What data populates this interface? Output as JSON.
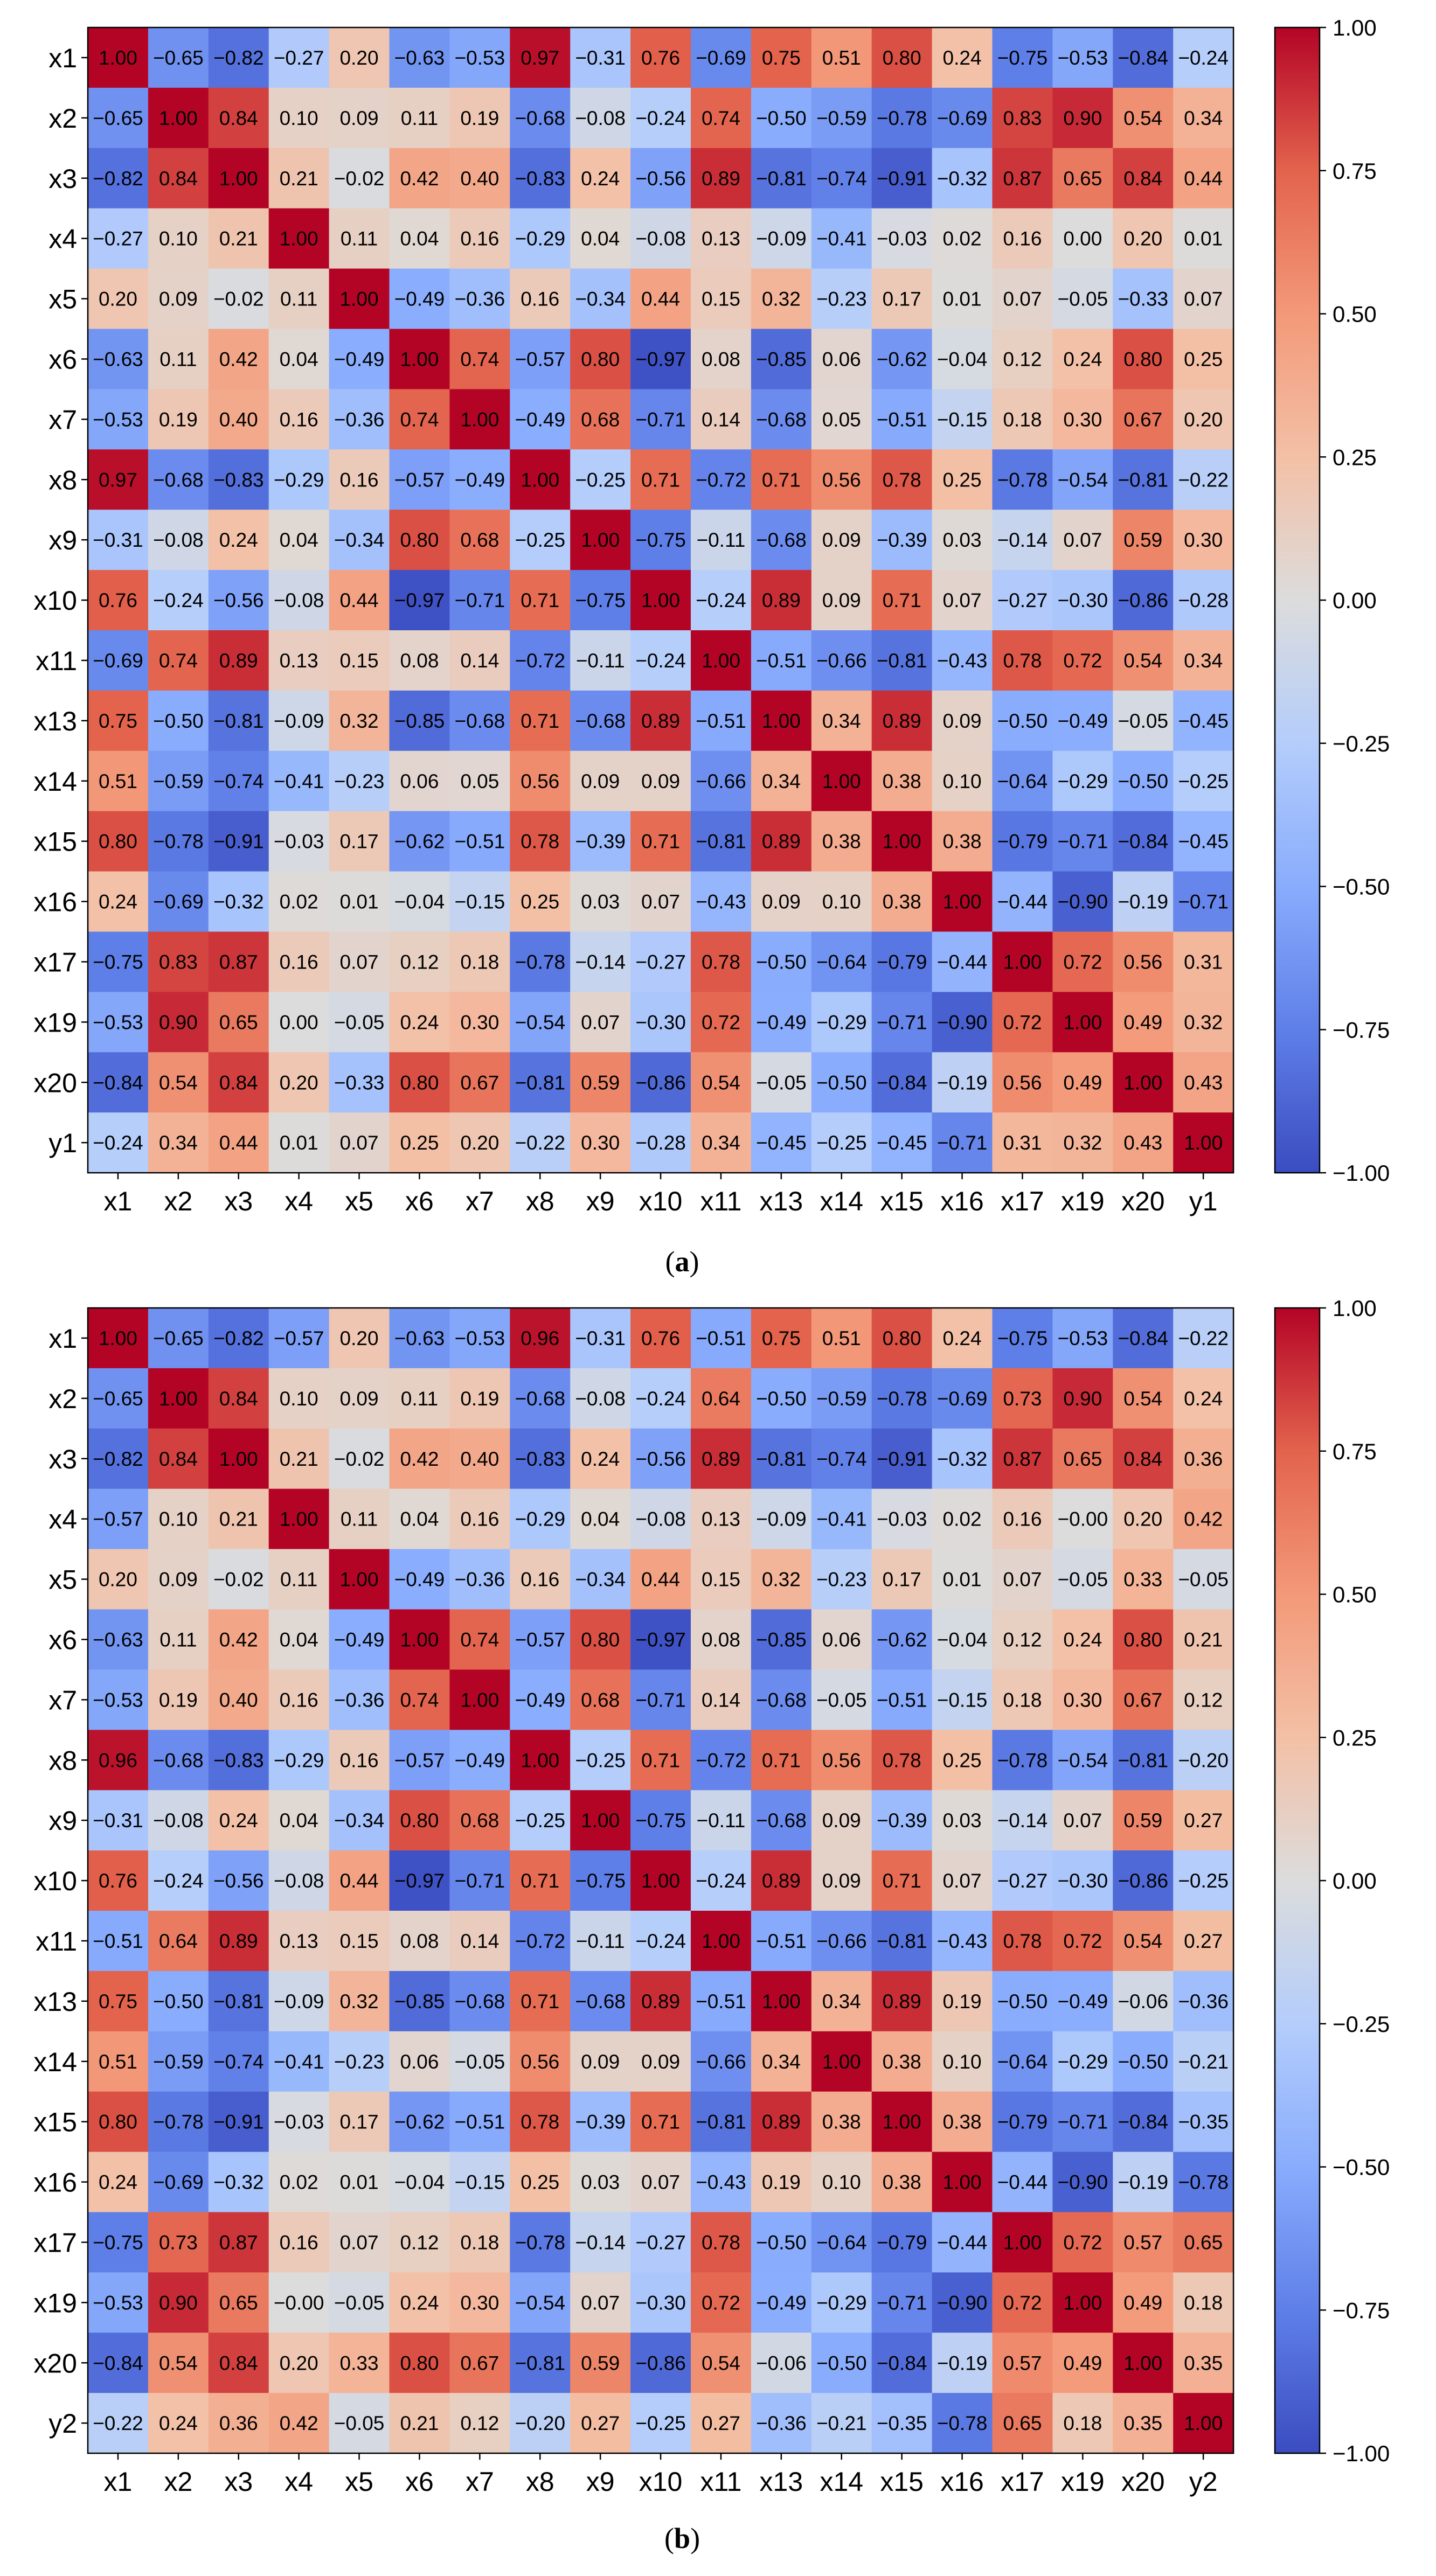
{
  "chart_data": [
    {
      "type": "heatmap",
      "caption": "(a)",
      "caption_letter": "a",
      "labels": [
        "x1",
        "x2",
        "x3",
        "x4",
        "x5",
        "x6",
        "x7",
        "x8",
        "x9",
        "x10",
        "x11",
        "x13",
        "x14",
        "x15",
        "x16",
        "x17",
        "x19",
        "x20",
        "y1"
      ],
      "values": [
        [
          "1.00",
          "-0.65",
          "-0.82",
          "-0.27",
          "0.20",
          "-0.63",
          "-0.53",
          "0.97",
          "-0.31",
          "0.76",
          "-0.69",
          "0.75",
          "0.51",
          "0.80",
          "0.24",
          "-0.75",
          "-0.53",
          "-0.84",
          "-0.24"
        ],
        [
          "-0.65",
          "1.00",
          "0.84",
          "0.10",
          "0.09",
          "0.11",
          "0.19",
          "-0.68",
          "-0.08",
          "-0.24",
          "0.74",
          "-0.50",
          "-0.59",
          "-0.78",
          "-0.69",
          "0.83",
          "0.90",
          "0.54",
          "0.34"
        ],
        [
          "-0.82",
          "0.84",
          "1.00",
          "0.21",
          "-0.02",
          "0.42",
          "0.40",
          "-0.83",
          "0.24",
          "-0.56",
          "0.89",
          "-0.81",
          "-0.74",
          "-0.91",
          "-0.32",
          "0.87",
          "0.65",
          "0.84",
          "0.44"
        ],
        [
          "-0.27",
          "0.10",
          "0.21",
          "1.00",
          "0.11",
          "0.04",
          "0.16",
          "-0.29",
          "0.04",
          "-0.08",
          "0.13",
          "-0.09",
          "-0.41",
          "-0.03",
          "0.02",
          "0.16",
          "0.00",
          "0.20",
          "0.01"
        ],
        [
          "0.20",
          "0.09",
          "-0.02",
          "0.11",
          "1.00",
          "-0.49",
          "-0.36",
          "0.16",
          "-0.34",
          "0.44",
          "0.15",
          "0.32",
          "-0.23",
          "0.17",
          "0.01",
          "0.07",
          "-0.05",
          "-0.33",
          "0.07"
        ],
        [
          "-0.63",
          "0.11",
          "0.42",
          "0.04",
          "-0.49",
          "1.00",
          "0.74",
          "-0.57",
          "0.80",
          "-0.97",
          "0.08",
          "-0.85",
          "0.06",
          "-0.62",
          "-0.04",
          "0.12",
          "0.24",
          "0.80",
          "0.25"
        ],
        [
          "-0.53",
          "0.19",
          "0.40",
          "0.16",
          "-0.36",
          "0.74",
          "1.00",
          "-0.49",
          "0.68",
          "-0.71",
          "0.14",
          "-0.68",
          "0.05",
          "-0.51",
          "-0.15",
          "0.18",
          "0.30",
          "0.67",
          "0.20"
        ],
        [
          "0.97",
          "-0.68",
          "-0.83",
          "-0.29",
          "0.16",
          "-0.57",
          "-0.49",
          "1.00",
          "-0.25",
          "0.71",
          "-0.72",
          "0.71",
          "0.56",
          "0.78",
          "0.25",
          "-0.78",
          "-0.54",
          "-0.81",
          "-0.22"
        ],
        [
          "-0.31",
          "-0.08",
          "0.24",
          "0.04",
          "-0.34",
          "0.80",
          "0.68",
          "-0.25",
          "1.00",
          "-0.75",
          "-0.11",
          "-0.68",
          "0.09",
          "-0.39",
          "0.03",
          "-0.14",
          "0.07",
          "0.59",
          "0.30"
        ],
        [
          "0.76",
          "-0.24",
          "-0.56",
          "-0.08",
          "0.44",
          "-0.97",
          "-0.71",
          "0.71",
          "-0.75",
          "1.00",
          "-0.24",
          "0.89",
          "0.09",
          "0.71",
          "0.07",
          "-0.27",
          "-0.30",
          "-0.86",
          "-0.28"
        ],
        [
          "-0.69",
          "0.74",
          "0.89",
          "0.13",
          "0.15",
          "0.08",
          "0.14",
          "-0.72",
          "-0.11",
          "-0.24",
          "1.00",
          "-0.51",
          "-0.66",
          "-0.81",
          "-0.43",
          "0.78",
          "0.72",
          "0.54",
          "0.34"
        ],
        [
          "0.75",
          "-0.50",
          "-0.81",
          "-0.09",
          "0.32",
          "-0.85",
          "-0.68",
          "0.71",
          "-0.68",
          "0.89",
          "-0.51",
          "1.00",
          "0.34",
          "0.89",
          "0.09",
          "-0.50",
          "-0.49",
          "-0.05",
          "-0.45"
        ],
        [
          "0.51",
          "-0.59",
          "-0.74",
          "-0.41",
          "-0.23",
          "0.06",
          "0.05",
          "0.56",
          "0.09",
          "0.09",
          "-0.66",
          "0.34",
          "1.00",
          "0.38",
          "0.10",
          "-0.64",
          "-0.29",
          "-0.50",
          "-0.25"
        ],
        [
          "0.80",
          "-0.78",
          "-0.91",
          "-0.03",
          "0.17",
          "-0.62",
          "-0.51",
          "0.78",
          "-0.39",
          "0.71",
          "-0.81",
          "0.89",
          "0.38",
          "1.00",
          "0.38",
          "-0.79",
          "-0.71",
          "-0.84",
          "-0.45"
        ],
        [
          "0.24",
          "-0.69",
          "-0.32",
          "0.02",
          "0.01",
          "-0.04",
          "-0.15",
          "0.25",
          "0.03",
          "0.07",
          "-0.43",
          "0.09",
          "0.10",
          "0.38",
          "1.00",
          "-0.44",
          "-0.90",
          "-0.19",
          "-0.71"
        ],
        [
          "-0.75",
          "0.83",
          "0.87",
          "0.16",
          "0.07",
          "0.12",
          "0.18",
          "-0.78",
          "-0.14",
          "-0.27",
          "0.78",
          "-0.50",
          "-0.64",
          "-0.79",
          "-0.44",
          "1.00",
          "0.72",
          "0.56",
          "0.31"
        ],
        [
          "-0.53",
          "0.90",
          "0.65",
          "0.00",
          "-0.05",
          "0.24",
          "0.30",
          "-0.54",
          "0.07",
          "-0.30",
          "0.72",
          "-0.49",
          "-0.29",
          "-0.71",
          "-0.90",
          "0.72",
          "1.00",
          "0.49",
          "0.32"
        ],
        [
          "-0.84",
          "0.54",
          "0.84",
          "0.20",
          "-0.33",
          "0.80",
          "0.67",
          "-0.81",
          "0.59",
          "-0.86",
          "0.54",
          "-0.05",
          "-0.50",
          "-0.84",
          "-0.19",
          "0.56",
          "0.49",
          "1.00",
          "0.43"
        ],
        [
          "-0.24",
          "0.34",
          "0.44",
          "0.01",
          "0.07",
          "0.25",
          "0.20",
          "-0.22",
          "0.30",
          "-0.28",
          "0.34",
          "-0.45",
          "-0.25",
          "-0.45",
          "-0.71",
          "0.31",
          "0.32",
          "0.43",
          "1.00"
        ]
      ],
      "colorbar": {
        "range": [
          -1.0,
          1.0
        ],
        "ticks": [
          "1.00",
          "0.75",
          "0.50",
          "0.25",
          "0.00",
          "−0.25",
          "−0.50",
          "−0.75",
          "−1.00"
        ],
        "tick_values": [
          1.0,
          0.75,
          0.5,
          0.25,
          0.0,
          -0.25,
          -0.5,
          -0.75,
          -1.0
        ],
        "colormap": "coolwarm"
      }
    },
    {
      "type": "heatmap",
      "caption": "(b)",
      "caption_letter": "b",
      "labels": [
        "x1",
        "x2",
        "x3",
        "x4",
        "x5",
        "x6",
        "x7",
        "x8",
        "x9",
        "x10",
        "x11",
        "x13",
        "x14",
        "x15",
        "x16",
        "x17",
        "x19",
        "x20",
        "y2"
      ],
      "values": [
        [
          "1.00",
          "-0.65",
          "-0.82",
          "-0.57",
          "0.20",
          "-0.63",
          "-0.53",
          "0.96",
          "-0.31",
          "0.76",
          "-0.51",
          "0.75",
          "0.51",
          "0.80",
          "0.24",
          "-0.75",
          "-0.53",
          "-0.84",
          "-0.22"
        ],
        [
          "-0.65",
          "1.00",
          "0.84",
          "0.10",
          "0.09",
          "0.11",
          "0.19",
          "-0.68",
          "-0.08",
          "-0.24",
          "0.64",
          "-0.50",
          "-0.59",
          "-0.78",
          "-0.69",
          "0.73",
          "0.90",
          "0.54",
          "0.24"
        ],
        [
          "-0.82",
          "0.84",
          "1.00",
          "0.21",
          "-0.02",
          "0.42",
          "0.40",
          "-0.83",
          "0.24",
          "-0.56",
          "0.89",
          "-0.81",
          "-0.74",
          "-0.91",
          "-0.32",
          "0.87",
          "0.65",
          "0.84",
          "0.36"
        ],
        [
          "-0.57",
          "0.10",
          "0.21",
          "1.00",
          "0.11",
          "0.04",
          "0.16",
          "-0.29",
          "0.04",
          "-0.08",
          "0.13",
          "-0.09",
          "-0.41",
          "-0.03",
          "0.02",
          "0.16",
          "-0.00",
          "0.20",
          "0.42"
        ],
        [
          "0.20",
          "0.09",
          "-0.02",
          "0.11",
          "1.00",
          "-0.49",
          "-0.36",
          "0.16",
          "-0.34",
          "0.44",
          "0.15",
          "0.32",
          "-0.23",
          "0.17",
          "0.01",
          "0.07",
          "-0.05",
          "0.33",
          "-0.05"
        ],
        [
          "-0.63",
          "0.11",
          "0.42",
          "0.04",
          "-0.49",
          "1.00",
          "0.74",
          "-0.57",
          "0.80",
          "-0.97",
          "0.08",
          "-0.85",
          "0.06",
          "-0.62",
          "-0.04",
          "0.12",
          "0.24",
          "0.80",
          "0.21"
        ],
        [
          "-0.53",
          "0.19",
          "0.40",
          "0.16",
          "-0.36",
          "0.74",
          "1.00",
          "-0.49",
          "0.68",
          "-0.71",
          "0.14",
          "-0.68",
          "-0.05",
          "-0.51",
          "-0.15",
          "0.18",
          "0.30",
          "0.67",
          "0.12"
        ],
        [
          "0.96",
          "-0.68",
          "-0.83",
          "-0.29",
          "0.16",
          "-0.57",
          "-0.49",
          "1.00",
          "-0.25",
          "0.71",
          "-0.72",
          "0.71",
          "0.56",
          "0.78",
          "0.25",
          "-0.78",
          "-0.54",
          "-0.81",
          "-0.20"
        ],
        [
          "-0.31",
          "-0.08",
          "0.24",
          "0.04",
          "-0.34",
          "0.80",
          "0.68",
          "-0.25",
          "1.00",
          "-0.75",
          "-0.11",
          "-0.68",
          "0.09",
          "-0.39",
          "0.03",
          "-0.14",
          "0.07",
          "0.59",
          "0.27"
        ],
        [
          "0.76",
          "-0.24",
          "-0.56",
          "-0.08",
          "0.44",
          "-0.97",
          "-0.71",
          "0.71",
          "-0.75",
          "1.00",
          "-0.24",
          "0.89",
          "0.09",
          "0.71",
          "0.07",
          "-0.27",
          "-0.30",
          "-0.86",
          "-0.25"
        ],
        [
          "-0.51",
          "0.64",
          "0.89",
          "0.13",
          "0.15",
          "0.08",
          "0.14",
          "-0.72",
          "-0.11",
          "-0.24",
          "1.00",
          "-0.51",
          "-0.66",
          "-0.81",
          "-0.43",
          "0.78",
          "0.72",
          "0.54",
          "0.27"
        ],
        [
          "0.75",
          "-0.50",
          "-0.81",
          "-0.09",
          "0.32",
          "-0.85",
          "-0.68",
          "0.71",
          "-0.68",
          "0.89",
          "-0.51",
          "1.00",
          "0.34",
          "0.89",
          "0.19",
          "-0.50",
          "-0.49",
          "-0.06",
          "-0.36"
        ],
        [
          "0.51",
          "-0.59",
          "-0.74",
          "-0.41",
          "-0.23",
          "0.06",
          "-0.05",
          "0.56",
          "0.09",
          "0.09",
          "-0.66",
          "0.34",
          "1.00",
          "0.38",
          "0.10",
          "-0.64",
          "-0.29",
          "-0.50",
          "-0.21"
        ],
        [
          "0.80",
          "-0.78",
          "-0.91",
          "-0.03",
          "0.17",
          "-0.62",
          "-0.51",
          "0.78",
          "-0.39",
          "0.71",
          "-0.81",
          "0.89",
          "0.38",
          "1.00",
          "0.38",
          "-0.79",
          "-0.71",
          "-0.84",
          "-0.35"
        ],
        [
          "0.24",
          "-0.69",
          "-0.32",
          "0.02",
          "0.01",
          "-0.04",
          "-0.15",
          "0.25",
          "0.03",
          "0.07",
          "-0.43",
          "0.19",
          "0.10",
          "0.38",
          "1.00",
          "-0.44",
          "-0.90",
          "-0.19",
          "-0.78"
        ],
        [
          "-0.75",
          "0.73",
          "0.87",
          "0.16",
          "0.07",
          "0.12",
          "0.18",
          "-0.78",
          "-0.14",
          "-0.27",
          "0.78",
          "-0.50",
          "-0.64",
          "-0.79",
          "-0.44",
          "1.00",
          "0.72",
          "0.57",
          "0.65"
        ],
        [
          "-0.53",
          "0.90",
          "0.65",
          "-0.00",
          "-0.05",
          "0.24",
          "0.30",
          "-0.54",
          "0.07",
          "-0.30",
          "0.72",
          "-0.49",
          "-0.29",
          "-0.71",
          "-0.90",
          "0.72",
          "1.00",
          "0.49",
          "0.18"
        ],
        [
          "-0.84",
          "0.54",
          "0.84",
          "0.20",
          "0.33",
          "0.80",
          "0.67",
          "-0.81",
          "0.59",
          "-0.86",
          "0.54",
          "-0.06",
          "-0.50",
          "-0.84",
          "-0.19",
          "0.57",
          "0.49",
          "1.00",
          "0.35"
        ],
        [
          "-0.22",
          "0.24",
          "0.36",
          "0.42",
          "-0.05",
          "0.21",
          "0.12",
          "-0.20",
          "0.27",
          "-0.25",
          "0.27",
          "-0.36",
          "-0.21",
          "-0.35",
          "-0.78",
          "0.65",
          "0.18",
          "0.35",
          "1.00"
        ]
      ],
      "colorbar": {
        "range": [
          -1.0,
          1.0
        ],
        "ticks": [
          "1.00",
          "0.75",
          "0.50",
          "0.25",
          "0.00",
          "−0.25",
          "−0.50",
          "−0.75",
          "−1.00"
        ],
        "tick_values": [
          1.0,
          0.75,
          0.5,
          0.25,
          0.0,
          -0.25,
          -0.5,
          -0.75,
          -1.0
        ],
        "colormap": "coolwarm"
      }
    }
  ]
}
